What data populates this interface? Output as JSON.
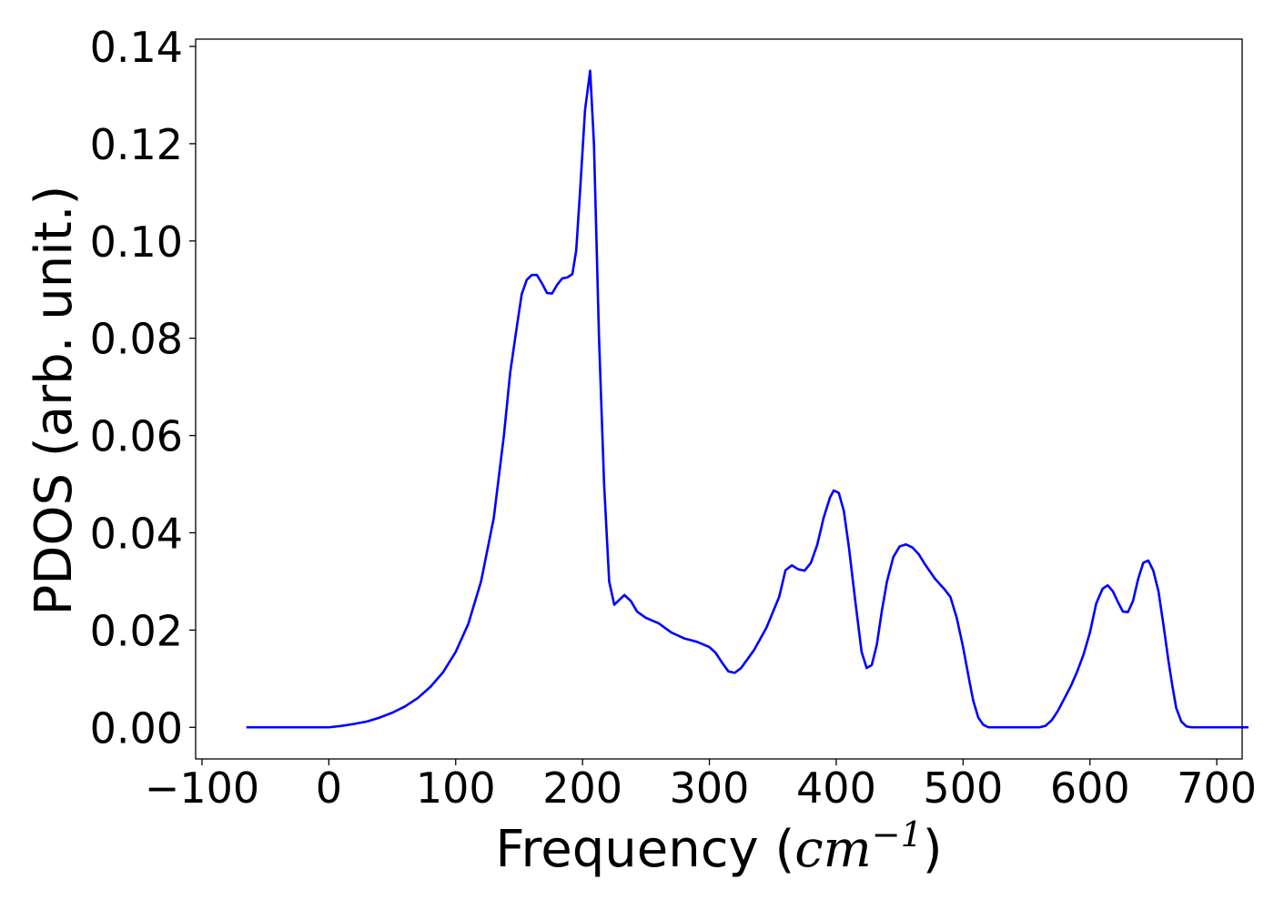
{
  "chart_data": {
    "type": "line",
    "title": "",
    "xlabel": "Frequency",
    "xlabel_unit": {
      "open": "(",
      "base": "cm",
      "exp": "−1",
      "close": ")"
    },
    "ylabel": "PDOS (arb. unit.)",
    "xlim": [
      -105,
      720
    ],
    "ylim": [
      -0.0065,
      0.1415
    ],
    "xticks": [
      -100,
      0,
      100,
      200,
      300,
      400,
      500,
      600,
      700
    ],
    "xtick_labels": [
      "−100",
      "0",
      "100",
      "200",
      "300",
      "400",
      "500",
      "600",
      "700"
    ],
    "yticks": [
      0.0,
      0.02,
      0.04,
      0.06,
      0.08,
      0.1,
      0.12,
      0.14
    ],
    "ytick_labels": [
      "0.00",
      "0.02",
      "0.04",
      "0.06",
      "0.08",
      "0.10",
      "0.12",
      "0.14"
    ],
    "grid": false,
    "color": "#0000ff",
    "series": [
      {
        "points": [
          [
            -65,
            0.0
          ],
          [
            0,
            0.0
          ],
          [
            10,
            0.0003
          ],
          [
            20,
            0.0007
          ],
          [
            30,
            0.0012
          ],
          [
            40,
            0.002
          ],
          [
            50,
            0.003
          ],
          [
            60,
            0.0043
          ],
          [
            70,
            0.006
          ],
          [
            80,
            0.0083
          ],
          [
            90,
            0.0113
          ],
          [
            100,
            0.0155
          ],
          [
            110,
            0.0213
          ],
          [
            120,
            0.03
          ],
          [
            130,
            0.043
          ],
          [
            138,
            0.06
          ],
          [
            143,
            0.073
          ],
          [
            148,
            0.082
          ],
          [
            152,
            0.089
          ],
          [
            156,
            0.092
          ],
          [
            160,
            0.093
          ],
          [
            164,
            0.093
          ],
          [
            168,
            0.0913
          ],
          [
            172,
            0.0893
          ],
          [
            176,
            0.0892
          ],
          [
            180,
            0.091
          ],
          [
            184,
            0.0923
          ],
          [
            188,
            0.0925
          ],
          [
            192,
            0.0932
          ],
          [
            195,
            0.098
          ],
          [
            198,
            0.11
          ],
          [
            202,
            0.127
          ],
          [
            206,
            0.135
          ],
          [
            209,
            0.12
          ],
          [
            213,
            0.08
          ],
          [
            217,
            0.05
          ],
          [
            221,
            0.03
          ],
          [
            225,
            0.0252
          ],
          [
            229,
            0.0262
          ],
          [
            233,
            0.0272
          ],
          [
            238,
            0.026
          ],
          [
            243,
            0.0238
          ],
          [
            250,
            0.0225
          ],
          [
            260,
            0.0214
          ],
          [
            270,
            0.0195
          ],
          [
            280,
            0.0183
          ],
          [
            290,
            0.0176
          ],
          [
            300,
            0.0165
          ],
          [
            305,
            0.0153
          ],
          [
            310,
            0.0133
          ],
          [
            315,
            0.0115
          ],
          [
            320,
            0.0112
          ],
          [
            325,
            0.0122
          ],
          [
            335,
            0.0158
          ],
          [
            345,
            0.0205
          ],
          [
            355,
            0.0268
          ],
          [
            360,
            0.0323
          ],
          [
            365,
            0.0333
          ],
          [
            370,
            0.0325
          ],
          [
            375,
            0.0322
          ],
          [
            380,
            0.0338
          ],
          [
            385,
            0.0375
          ],
          [
            390,
            0.043
          ],
          [
            395,
            0.0472
          ],
          [
            398,
            0.0487
          ],
          [
            402,
            0.0482
          ],
          [
            406,
            0.0445
          ],
          [
            410,
            0.037
          ],
          [
            415,
            0.026
          ],
          [
            420,
            0.0155
          ],
          [
            424,
            0.0122
          ],
          [
            428,
            0.0128
          ],
          [
            432,
            0.017
          ],
          [
            436,
            0.024
          ],
          [
            440,
            0.03
          ],
          [
            445,
            0.035
          ],
          [
            450,
            0.0372
          ],
          [
            455,
            0.0376
          ],
          [
            460,
            0.037
          ],
          [
            465,
            0.0356
          ],
          [
            470,
            0.0335
          ],
          [
            478,
            0.0305
          ],
          [
            485,
            0.0285
          ],
          [
            490,
            0.0268
          ],
          [
            495,
            0.0225
          ],
          [
            500,
            0.0165
          ],
          [
            505,
            0.0095
          ],
          [
            508,
            0.0055
          ],
          [
            512,
            0.002
          ],
          [
            516,
            0.0005
          ],
          [
            520,
            0.0
          ],
          [
            560,
            0.0
          ],
          [
            565,
            0.0003
          ],
          [
            570,
            0.0015
          ],
          [
            575,
            0.0035
          ],
          [
            580,
            0.006
          ],
          [
            585,
            0.0085
          ],
          [
            590,
            0.0115
          ],
          [
            595,
            0.015
          ],
          [
            600,
            0.0195
          ],
          [
            605,
            0.0255
          ],
          [
            610,
            0.0285
          ],
          [
            614,
            0.0292
          ],
          [
            618,
            0.028
          ],
          [
            622,
            0.0258
          ],
          [
            626,
            0.0238
          ],
          [
            630,
            0.0237
          ],
          [
            634,
            0.026
          ],
          [
            638,
            0.0305
          ],
          [
            642,
            0.0338
          ],
          [
            646,
            0.0343
          ],
          [
            650,
            0.0322
          ],
          [
            654,
            0.028
          ],
          [
            658,
            0.021
          ],
          [
            662,
            0.0135
          ],
          [
            665,
            0.0085
          ],
          [
            668,
            0.004
          ],
          [
            672,
            0.0012
          ],
          [
            676,
            0.0002
          ],
          [
            680,
            0.0
          ],
          [
            725,
            0.0
          ]
        ]
      }
    ]
  }
}
